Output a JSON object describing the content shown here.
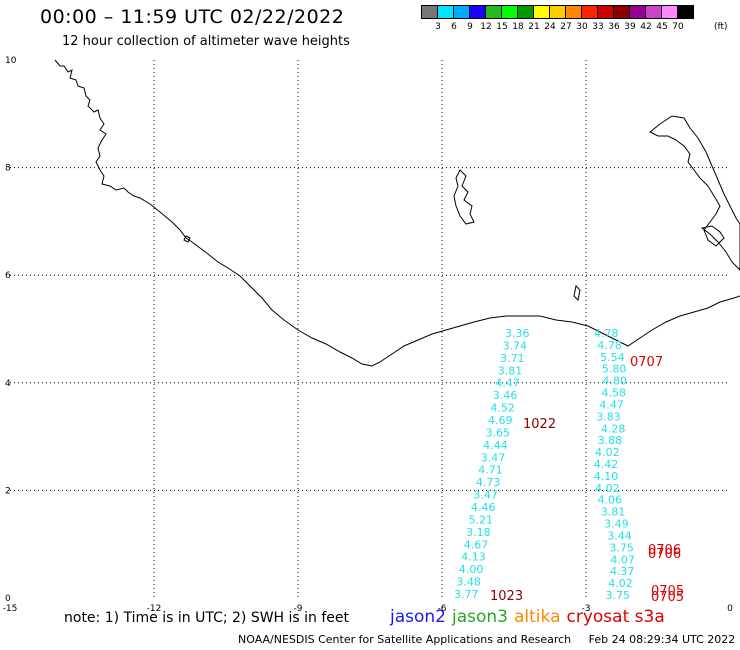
{
  "header": {
    "title": "00:00 – 11:59 UTC 02/22/2022",
    "subtitle": "12 hour collection of altimeter wave heights"
  },
  "legend": {
    "colors": [
      "#777777",
      "#00e5ff",
      "#00aaff",
      "#1a00ff",
      "#22bb22",
      "#00ff00",
      "#009900",
      "#ffff00",
      "#ffcc00",
      "#ff8800",
      "#ff2200",
      "#cc0000",
      "#880000",
      "#990099",
      "#cc44cc",
      "#ff88ff",
      "#000000"
    ],
    "ticks": [
      "3",
      "6",
      "9",
      "12",
      "15",
      "18",
      "21",
      "24",
      "27",
      "30",
      "33",
      "36",
      "39",
      "42",
      "45",
      "70"
    ],
    "unit": "(ft)"
  },
  "axes": {
    "x_ticks": [
      "-15",
      "-12",
      "-9",
      "-6",
      "-3",
      "0"
    ],
    "y_ticks": [
      "0",
      "2",
      "4",
      "6",
      "8",
      "10"
    ]
  },
  "observations": {
    "track_west": {
      "color": "#22e0e8",
      "values": [
        "3.36",
        "3.74",
        "3.71",
        "3.81",
        "4.47",
        "3.46",
        "4.52",
        "4.69",
        "3.65",
        "4.44",
        "3.47",
        "4.71",
        "4.73",
        "3.47",
        "4.46",
        "5.21",
        "3.18",
        "4.67",
        "4.13",
        "4.00",
        "3.48",
        "3.77"
      ]
    },
    "track_east": {
      "color": "#22e0e8",
      "values": [
        "4.78",
        "4.78",
        "5.54",
        "5.80",
        "4.80",
        "4.58",
        "4.47",
        "3.83",
        "4.28",
        "3.88",
        "4.02",
        "4.42",
        "4.10",
        "4.02",
        "4.06",
        "3.81",
        "3.49",
        "3.44",
        "3.75",
        "4.07",
        "4.37",
        "4.02",
        "3.75"
      ]
    },
    "time_stamps": [
      {
        "label": "0707",
        "color": "#dd0000"
      },
      {
        "label": "1022",
        "color": "#880000"
      },
      {
        "label": "0706",
        "color": "#dd0000"
      },
      {
        "label": "0706",
        "color": "#dd0000"
      },
      {
        "label": "1023",
        "color": "#880000"
      },
      {
        "label": "0705",
        "color": "#dd0000"
      },
      {
        "label": "0705",
        "color": "#dd0000"
      }
    ]
  },
  "note": "note: 1) Time is in UTC; 2) SWH is in feet",
  "satellites": [
    {
      "name": "jason2",
      "color": "#1a1aee"
    },
    {
      "name": "jason3",
      "color": "#22aa22"
    },
    {
      "name": "altika",
      "color": "#ff8800"
    },
    {
      "name": "cryosat s3a",
      "color": "#dd0000"
    }
  ],
  "footer": {
    "source": "NOAA/NESDIS Center for Satellite Applications and Research",
    "timestamp": "Feb 24 08:29:34 UTC 2022"
  }
}
